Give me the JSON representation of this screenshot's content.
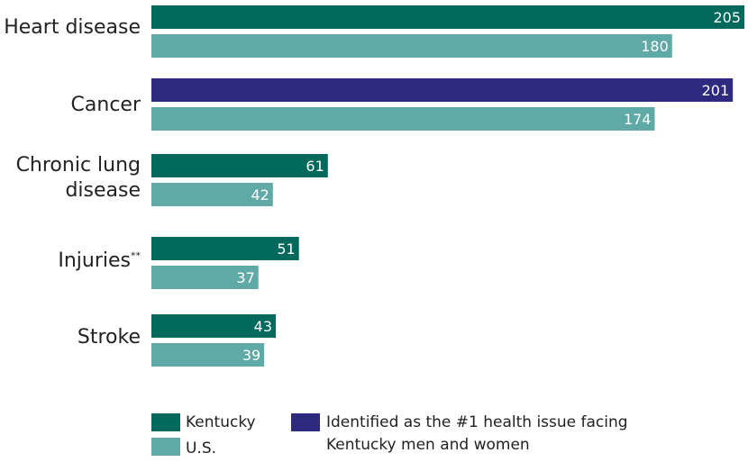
{
  "chart_data": {
    "type": "bar",
    "orientation": "horizontal",
    "categories": [
      "Heart disease",
      "Cancer",
      "Chronic lung disease",
      "Injuries",
      "Stroke"
    ],
    "category_footnotes": [
      "",
      "",
      "",
      "**",
      ""
    ],
    "series": [
      {
        "name": "Kentucky",
        "values": [
          205,
          201,
          61,
          51,
          43
        ]
      },
      {
        "name": "U.S.",
        "values": [
          180,
          174,
          42,
          37,
          39
        ]
      }
    ],
    "highlight": {
      "category_index": 1,
      "series_index": 0
    },
    "colors": {
      "kentucky": "#00695c",
      "us": "#5faaa6",
      "highlight": "#2e2a80",
      "value_text": "#ffffff",
      "label_text": "#222222"
    },
    "xlim": [
      0,
      205
    ],
    "grid": false
  },
  "labels": {
    "heart": "Heart disease",
    "cancer": "Cancer",
    "lung_line1": "Chronic lung",
    "lung_line2": "disease",
    "injuries": "Injuries",
    "injuries_note": "**",
    "stroke": "Stroke"
  },
  "legend": {
    "kentucky": "Kentucky",
    "us": "U.S.",
    "highlight_line1": "Identified as the #1 health issue facing",
    "highlight_line2": "Kentucky men and women"
  }
}
